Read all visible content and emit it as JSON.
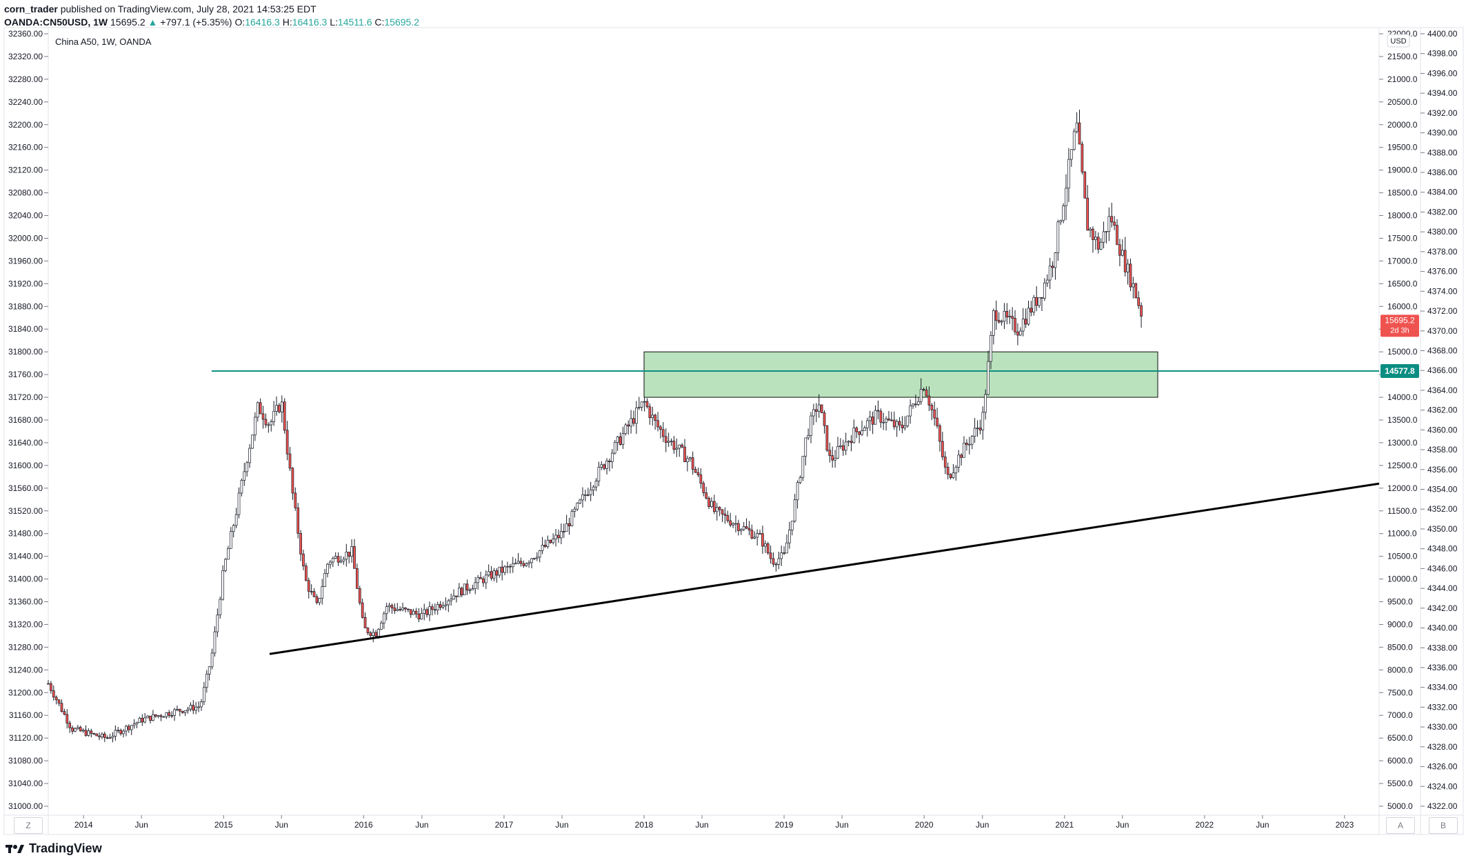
{
  "header": {
    "author": "corn_trader",
    "published_text": "published on TradingView.com, July 28, 2021 14:53:25 EDT",
    "symbol": "OANDA:CN50USD, 1W",
    "last_price": "15695.2",
    "change": "+797.1 (+5.35%)",
    "open_label": "O:",
    "open": "16416.3",
    "high_label": "H:",
    "high": "16416.3",
    "low_label": "L:",
    "low": "14511.6",
    "close_label": "C:",
    "close": "15695.2"
  },
  "chart_title": "China A50, 1W, OANDA",
  "currency_badge": "USD",
  "price_badge": {
    "value": "15695.2",
    "countdown": "2d 3h",
    "color": "#ef5350"
  },
  "line_badge": {
    "value": "14577.8",
    "color": "#0b8e81"
  },
  "bottom_left_button": "Z",
  "bottom_right_buttons": [
    "A",
    "B"
  ],
  "footer_logo_text": "TradingView",
  "colors": {
    "up": "#26a69a",
    "down": "#ef5350",
    "zone": "#b7e1b9",
    "hline": "#0b8e81",
    "trend": "#000000"
  },
  "chart_data": {
    "type": "candlestick",
    "title": "China A50, 1W, OANDA",
    "left_axis": {
      "ticks": [
        "32360.00",
        "32320.00",
        "32280.00",
        "32240.00",
        "32200.00",
        "32160.00",
        "32120.00",
        "32080.00",
        "32040.00",
        "32000.00",
        "31960.00",
        "31920.00",
        "31880.00",
        "31840.00",
        "31800.00",
        "31760.00",
        "31720.00",
        "31680.00",
        "31640.00",
        "31600.00",
        "31560.00",
        "31520.00",
        "31480.00",
        "31440.00",
        "31400.00",
        "31360.00",
        "31320.00",
        "31280.00",
        "31240.00",
        "31200.00",
        "31160.00",
        "31120.00",
        "31080.00",
        "31040.00",
        "31000.00"
      ]
    },
    "right_axis_price": {
      "unit": "USD",
      "range": [
        5000,
        22000
      ],
      "ticks": [
        "22000.0",
        "21500.0",
        "21000.0",
        "20500.0",
        "20000.0",
        "19500.0",
        "19000.0",
        "18500.0",
        "18000.0",
        "17500.0",
        "17000.0",
        "16500.0",
        "16000.0",
        "15500.0",
        "15000.0",
        "14500.0",
        "14000.0",
        "13500.0",
        "13000.0",
        "12500.0",
        "12000.0",
        "11500.0",
        "11000.0",
        "10500.0",
        "10000.0",
        "9500.0",
        "9000.0",
        "8500.0",
        "8000.0",
        "7500.0",
        "7000.0",
        "6500.0",
        "6000.0",
        "5500.0",
        "5000.0"
      ]
    },
    "right_axis_secondary": {
      "ticks": [
        "4400.00",
        "4398.00",
        "4396.00",
        "4394.00",
        "4392.00",
        "4390.00",
        "4388.00",
        "4386.00",
        "4384.00",
        "4382.00",
        "4380.00",
        "4378.00",
        "4376.00",
        "4374.00",
        "4372.00",
        "4370.00",
        "4368.00",
        "4366.00",
        "4364.00",
        "4362.00",
        "4360.00",
        "4358.00",
        "4356.00",
        "4354.00",
        "4352.00",
        "4350.00",
        "4348.00",
        "4346.00",
        "4344.00",
        "4342.00",
        "4340.00",
        "4338.00",
        "4336.00",
        "4334.00",
        "4332.00",
        "4330.00",
        "4328.00",
        "4326.00",
        "4324.00",
        "4322.00"
      ]
    },
    "x_axis": {
      "ticks": [
        "2014",
        "Jun",
        "2015",
        "Jun",
        "2016",
        "Jun",
        "2017",
        "Jun",
        "2018",
        "Jun",
        "2019",
        "Jun",
        "2020",
        "Jun",
        "2021",
        "Jun",
        "2022",
        "Jun",
        "2023"
      ],
      "range": [
        "2013-10-01",
        "2023-04-01"
      ]
    },
    "price_path": [
      [
        "2013-10-01",
        7700
      ],
      [
        "2013-12-01",
        6700
      ],
      [
        "2014-03-01",
        6500
      ],
      [
        "2014-06-01",
        6900
      ],
      [
        "2014-09-01",
        7100
      ],
      [
        "2014-11-01",
        7200
      ],
      [
        "2014-12-01",
        8300
      ],
      [
        "2015-01-01",
        10200
      ],
      [
        "2015-02-01",
        11400
      ],
      [
        "2015-03-01",
        12600
      ],
      [
        "2015-04-01",
        13800
      ],
      [
        "2015-05-01",
        13400
      ],
      [
        "2015-06-01",
        13900
      ],
      [
        "2015-07-01",
        11800
      ],
      [
        "2015-08-01",
        10000
      ],
      [
        "2015-09-01",
        9400
      ],
      [
        "2015-10-01",
        10400
      ],
      [
        "2015-12-01",
        10600
      ],
      [
        "2016-01-01",
        8900
      ],
      [
        "2016-02-01",
        8800
      ],
      [
        "2016-03-01",
        9400
      ],
      [
        "2016-06-01",
        9200
      ],
      [
        "2016-09-01",
        9700
      ],
      [
        "2016-12-01",
        10100
      ],
      [
        "2017-03-01",
        10400
      ],
      [
        "2017-06-01",
        11000
      ],
      [
        "2017-09-01",
        12300
      ],
      [
        "2018-01-01",
        13900
      ],
      [
        "2018-02-01",
        13400
      ],
      [
        "2018-03-01",
        13100
      ],
      [
        "2018-05-01",
        12600
      ],
      [
        "2018-07-01",
        11500
      ],
      [
        "2018-09-01",
        11200
      ],
      [
        "2018-11-01",
        10900
      ],
      [
        "2018-12-01",
        10400
      ],
      [
        "2019-01-01",
        10500
      ],
      [
        "2019-02-01",
        11800
      ],
      [
        "2019-03-01",
        13200
      ],
      [
        "2019-04-01",
        13900
      ],
      [
        "2019-05-01",
        12600
      ],
      [
        "2019-07-01",
        13200
      ],
      [
        "2019-09-01",
        13600
      ],
      [
        "2019-11-01",
        13300
      ],
      [
        "2020-01-01",
        14300
      ],
      [
        "2020-02-01",
        13400
      ],
      [
        "2020-03-01",
        12200
      ],
      [
        "2020-04-01",
        12700
      ],
      [
        "2020-06-01",
        13500
      ],
      [
        "2020-07-01",
        15900
      ],
      [
        "2020-09-01",
        15500
      ],
      [
        "2020-11-01",
        16300
      ],
      [
        "2020-12-01",
        17000
      ],
      [
        "2021-01-01",
        18500
      ],
      [
        "2021-02-01",
        20000
      ],
      [
        "2021-03-01",
        17800
      ],
      [
        "2021-04-01",
        17300
      ],
      [
        "2021-05-01",
        18000
      ],
      [
        "2021-06-01",
        17100
      ],
      [
        "2021-07-01",
        16400
      ],
      [
        "2021-07-26",
        15695
      ]
    ],
    "annotations": {
      "zone": {
        "from": "2018-01-01",
        "to": "2021-09-01",
        "low": 14000,
        "high": 15000
      },
      "horizontal_line": {
        "from": "2014-12-01",
        "value": 14577.8
      },
      "trendline": {
        "from": [
          "2015-05-01",
          8350
        ],
        "to": [
          "2023-04-01",
          12100
        ]
      }
    }
  }
}
